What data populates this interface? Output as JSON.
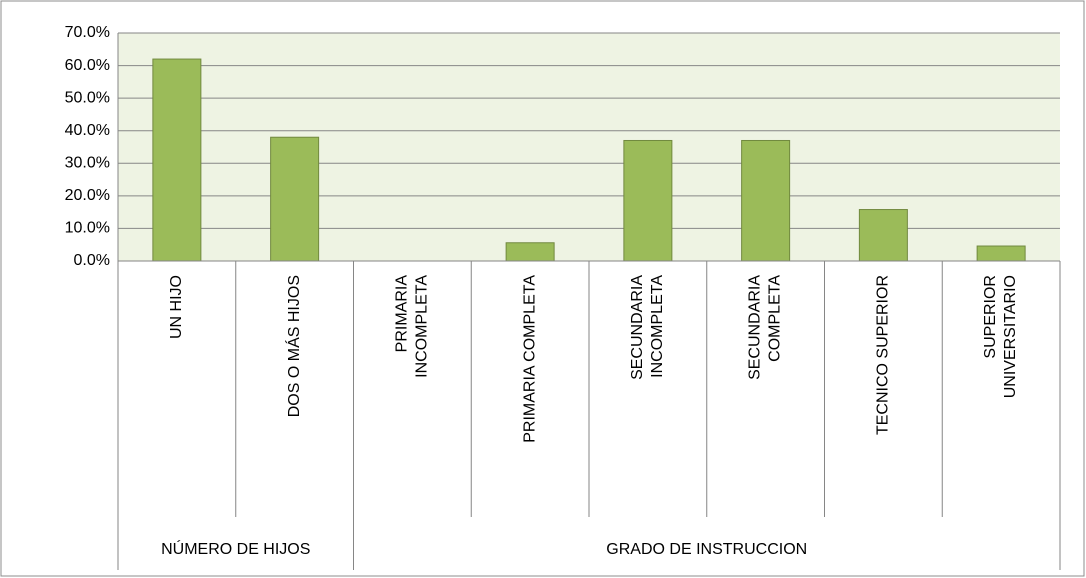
{
  "chart_data": {
    "type": "bar",
    "color": "#9bbb59",
    "grid": true,
    "ylim": [
      0,
      70
    ],
    "yticks": [
      {
        "value": 0,
        "label": "0.0%"
      },
      {
        "value": 10,
        "label": "10.0%"
      },
      {
        "value": 20,
        "label": "20.0%"
      },
      {
        "value": 30,
        "label": "30.0%"
      },
      {
        "value": 40,
        "label": "40.0%"
      },
      {
        "value": 50,
        "label": "50.0%"
      },
      {
        "value": 60,
        "label": "60.0%"
      },
      {
        "value": 70,
        "label": "70.0%"
      }
    ],
    "groups": [
      {
        "name": "NÚMERO DE HIJOS",
        "categories": [
          "UN HIJO",
          "DOS O MÁS HIJOS"
        ],
        "values": [
          62,
          38
        ]
      },
      {
        "name": "GRADO DE INSTRUCCION",
        "categories": [
          "PRIMARIA INCOMPLETA",
          "PRIMARIA COMPLETA",
          "SECUNDARIA INCOMPLETA",
          "SECUNDARIA COMPLETA",
          "TECNICO SUPERIOR",
          "SUPERIOR UNIVERSITARIO"
        ],
        "values": [
          0,
          5.6,
          37,
          37,
          15.8,
          4.6
        ]
      }
    ]
  }
}
